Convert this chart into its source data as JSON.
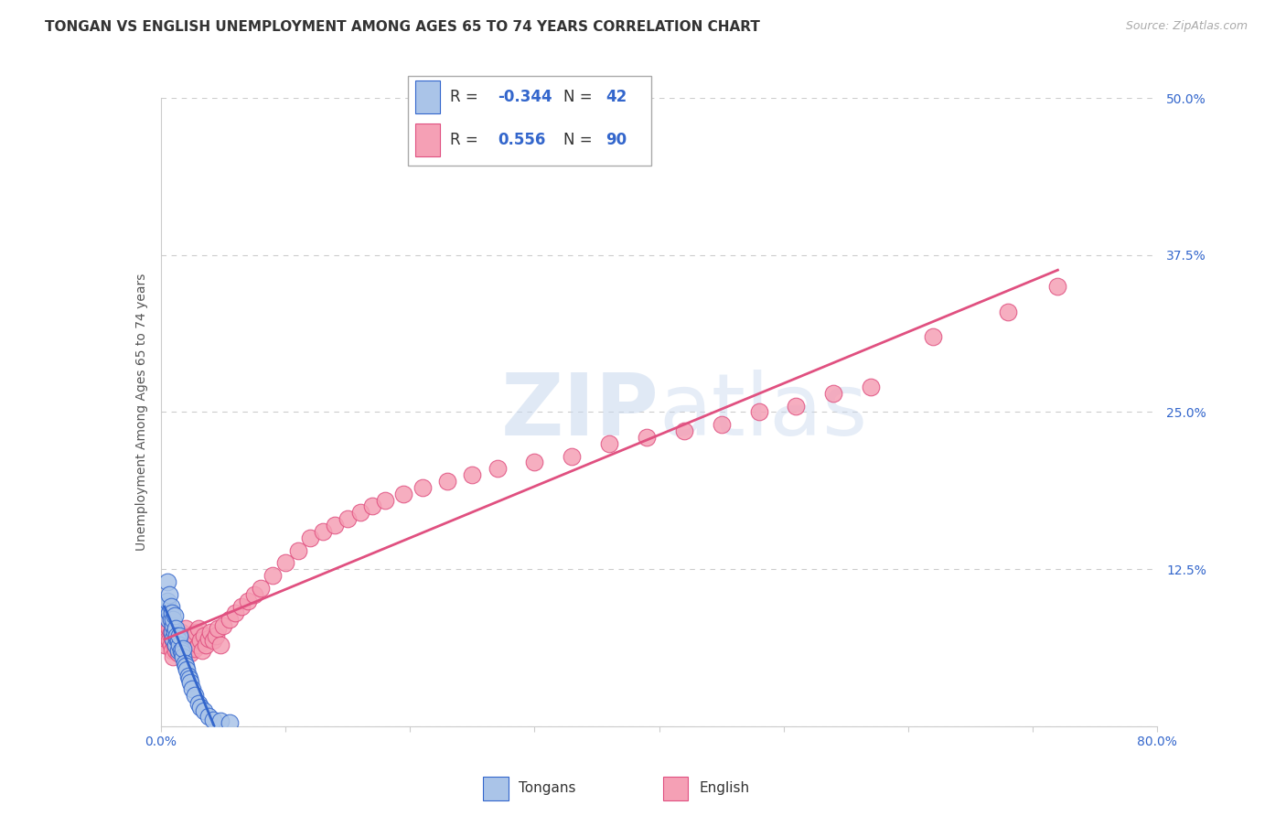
{
  "title": "TONGAN VS ENGLISH UNEMPLOYMENT AMONG AGES 65 TO 74 YEARS CORRELATION CHART",
  "source": "Source: ZipAtlas.com",
  "ylabel": "Unemployment Among Ages 65 to 74 years",
  "xlim": [
    0,
    0.8
  ],
  "ylim": [
    0,
    0.5
  ],
  "xticks": [
    0.0,
    0.1,
    0.2,
    0.3,
    0.4,
    0.5,
    0.6,
    0.7,
    0.8
  ],
  "yticks": [
    0.0,
    0.125,
    0.25,
    0.375,
    0.5
  ],
  "grid_color": "#cccccc",
  "background_color": "#ffffff",
  "tongan_color": "#aac4e8",
  "english_color": "#f5a0b5",
  "tongan_line_color": "#3366cc",
  "english_line_color": "#e05080",
  "tongan_R": -0.344,
  "tongan_N": 42,
  "english_R": 0.556,
  "english_N": 90,
  "legend_label_tongans": "Tongans",
  "legend_label_english": "English",
  "watermark_zip": "ZIP",
  "watermark_atlas": "atlas",
  "title_fontsize": 11,
  "axis_label_fontsize": 10,
  "tick_fontsize": 10,
  "source_fontsize": 9,
  "tongan_x": [
    0.003,
    0.005,
    0.005,
    0.006,
    0.007,
    0.007,
    0.008,
    0.008,
    0.009,
    0.009,
    0.01,
    0.01,
    0.01,
    0.011,
    0.011,
    0.012,
    0.012,
    0.013,
    0.013,
    0.014,
    0.014,
    0.015,
    0.015,
    0.016,
    0.017,
    0.018,
    0.018,
    0.019,
    0.02,
    0.021,
    0.022,
    0.023,
    0.024,
    0.025,
    0.027,
    0.03,
    0.032,
    0.035,
    0.038,
    0.042,
    0.048,
    0.055
  ],
  "tongan_y": [
    0.095,
    0.1,
    0.115,
    0.085,
    0.09,
    0.105,
    0.085,
    0.095,
    0.075,
    0.09,
    0.08,
    0.085,
    0.07,
    0.075,
    0.088,
    0.065,
    0.078,
    0.07,
    0.072,
    0.068,
    0.06,
    0.065,
    0.072,
    0.06,
    0.058,
    0.055,
    0.062,
    0.05,
    0.048,
    0.045,
    0.04,
    0.038,
    0.035,
    0.03,
    0.025,
    0.018,
    0.015,
    0.012,
    0.008,
    0.005,
    0.004,
    0.003
  ],
  "english_x": [
    0.003,
    0.004,
    0.005,
    0.005,
    0.006,
    0.006,
    0.007,
    0.007,
    0.008,
    0.008,
    0.008,
    0.009,
    0.009,
    0.01,
    0.01,
    0.01,
    0.011,
    0.011,
    0.012,
    0.012,
    0.013,
    0.013,
    0.014,
    0.014,
    0.015,
    0.015,
    0.016,
    0.016,
    0.017,
    0.017,
    0.018,
    0.018,
    0.019,
    0.02,
    0.02,
    0.021,
    0.022,
    0.023,
    0.024,
    0.025,
    0.026,
    0.027,
    0.028,
    0.03,
    0.03,
    0.032,
    0.033,
    0.035,
    0.036,
    0.038,
    0.04,
    0.042,
    0.044,
    0.046,
    0.048,
    0.05,
    0.055,
    0.06,
    0.065,
    0.07,
    0.075,
    0.08,
    0.09,
    0.1,
    0.11,
    0.12,
    0.13,
    0.14,
    0.15,
    0.16,
    0.17,
    0.18,
    0.195,
    0.21,
    0.23,
    0.25,
    0.27,
    0.3,
    0.33,
    0.36,
    0.39,
    0.42,
    0.45,
    0.48,
    0.51,
    0.54,
    0.57,
    0.62,
    0.68,
    0.72
  ],
  "english_y": [
    0.065,
    0.07,
    0.075,
    0.08,
    0.07,
    0.085,
    0.068,
    0.078,
    0.065,
    0.075,
    0.085,
    0.06,
    0.072,
    0.068,
    0.078,
    0.055,
    0.065,
    0.075,
    0.06,
    0.07,
    0.065,
    0.075,
    0.058,
    0.068,
    0.072,
    0.062,
    0.065,
    0.075,
    0.058,
    0.068,
    0.072,
    0.062,
    0.065,
    0.068,
    0.078,
    0.06,
    0.07,
    0.065,
    0.058,
    0.068,
    0.072,
    0.062,
    0.075,
    0.065,
    0.078,
    0.068,
    0.06,
    0.072,
    0.065,
    0.07,
    0.075,
    0.068,
    0.072,
    0.078,
    0.065,
    0.08,
    0.085,
    0.09,
    0.095,
    0.1,
    0.105,
    0.11,
    0.12,
    0.13,
    0.14,
    0.15,
    0.155,
    0.16,
    0.165,
    0.17,
    0.175,
    0.18,
    0.185,
    0.19,
    0.195,
    0.2,
    0.205,
    0.21,
    0.215,
    0.225,
    0.23,
    0.235,
    0.24,
    0.25,
    0.255,
    0.265,
    0.27,
    0.31,
    0.33,
    0.35
  ]
}
